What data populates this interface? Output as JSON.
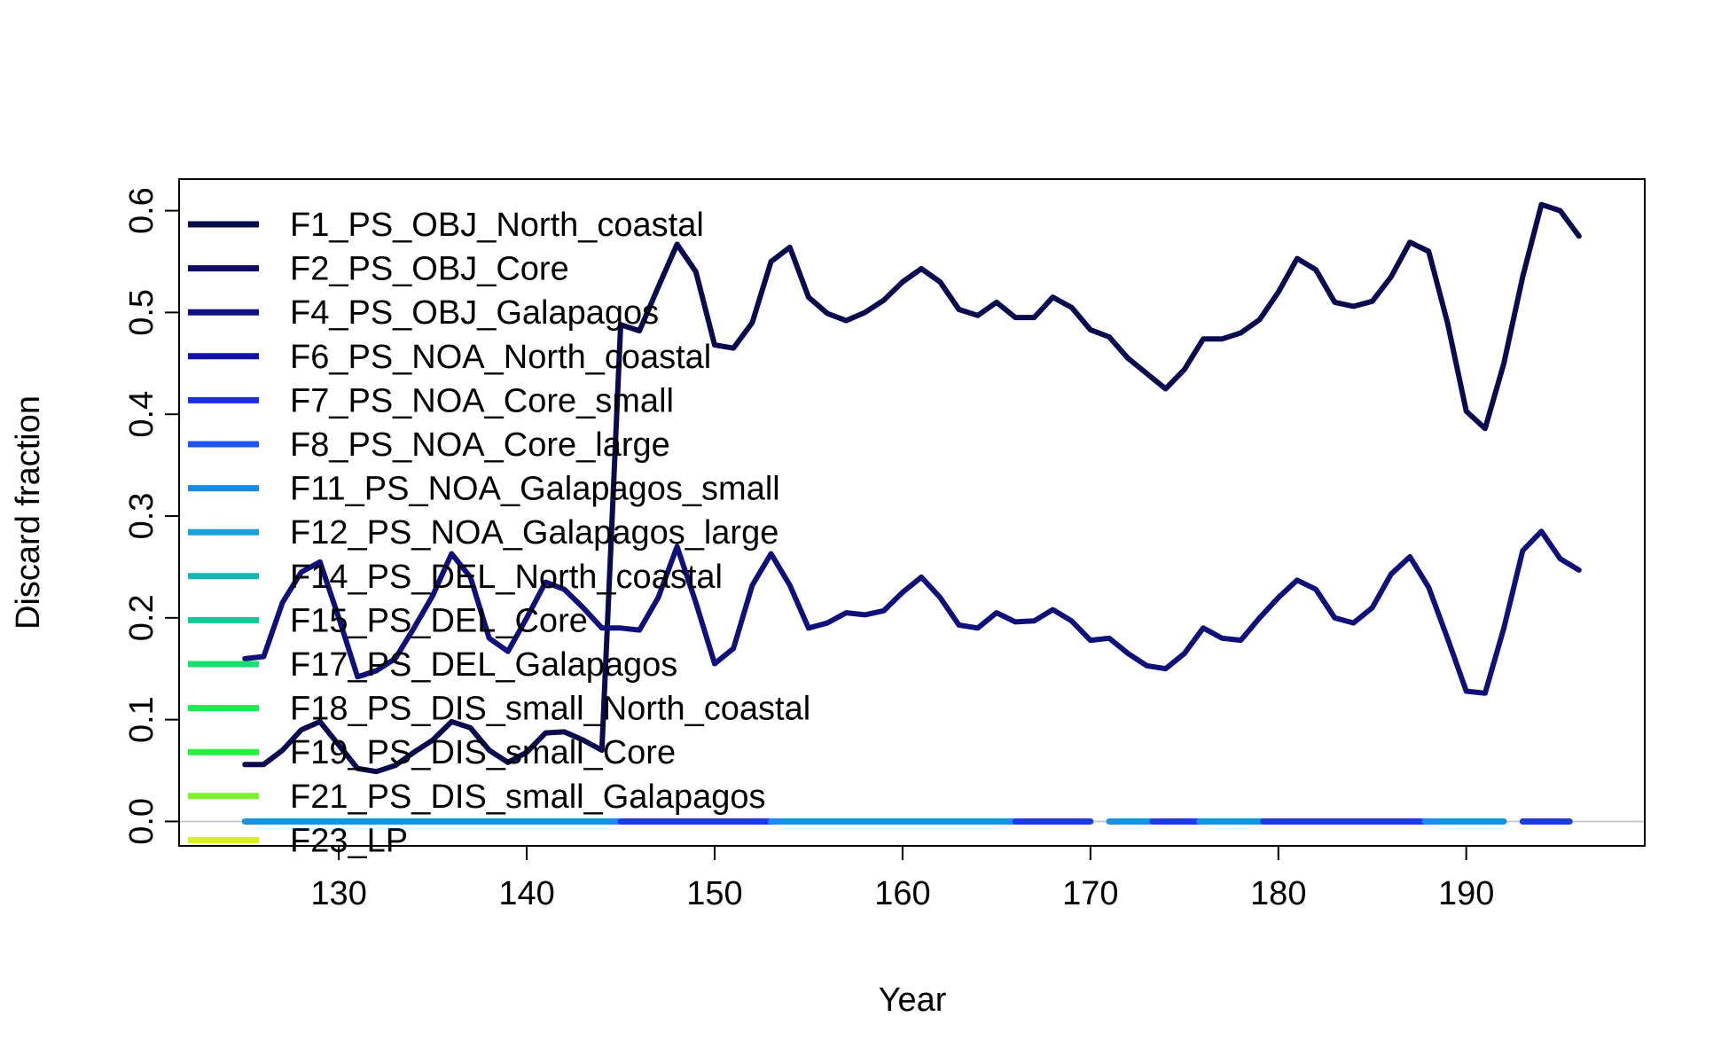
{
  "chart_data": {
    "type": "line",
    "title": "",
    "xlabel": "Year",
    "ylabel": "Discard fraction",
    "xlim": [
      121.5,
      199.5
    ],
    "ylim": [
      -0.024,
      0.631
    ],
    "xticks": [
      130,
      140,
      150,
      160,
      170,
      180,
      190
    ],
    "yticks": [
      0.0,
      0.1,
      0.2,
      0.3,
      0.4,
      0.5,
      0.6
    ],
    "grid": false,
    "legend_position": "top-left",
    "zero_line": {
      "y": 0,
      "color": "#c8c8c8"
    },
    "legend": [
      {
        "label": "F1_PS_OBJ_North_coastal",
        "color": "#0a0a4e"
      },
      {
        "label": "F2_PS_OBJ_Core",
        "color": "#0d0d66"
      },
      {
        "label": "F4_PS_OBJ_Galapagos",
        "color": "#101080"
      },
      {
        "label": "F6_PS_NOA_North_coastal",
        "color": "#1212a8"
      },
      {
        "label": "F7_PS_NOA_Core_small",
        "color": "#1a2ee0"
      },
      {
        "label": "F8_PS_NOA_Core_large",
        "color": "#1d55f0"
      },
      {
        "label": "F11_PS_NOA_Galapagos_small",
        "color": "#1a8ae8"
      },
      {
        "label": "F12_PS_NOA_Galapagos_large",
        "color": "#1aa0dc"
      },
      {
        "label": "F14_PS_DEL_North_coastal",
        "color": "#12b8b0"
      },
      {
        "label": "F15_PS_DEL_Core",
        "color": "#10c898"
      },
      {
        "label": "F17_PS_DEL_Galapagos",
        "color": "#16e070"
      },
      {
        "label": "F18_PS_DIS_small_North_coastal",
        "color": "#18ec50"
      },
      {
        "label": "F19_PS_DIS_small_Core",
        "color": "#28f040"
      },
      {
        "label": "F21_PS_DIS_small_Galapagos",
        "color": "#7cf02c"
      },
      {
        "label": "F23_LP",
        "color": "#d8f020"
      }
    ],
    "series": [
      {
        "color": "#0a0a4e",
        "x": [
          125,
          126,
          127,
          128,
          129,
          130,
          131,
          132,
          133,
          134,
          135,
          136,
          137,
          138,
          139,
          140,
          141,
          142,
          143,
          144,
          145,
          146,
          147,
          148,
          149,
          150,
          151,
          152,
          153,
          154,
          155,
          156,
          157,
          158,
          159,
          160,
          161,
          162,
          163,
          164,
          165,
          166,
          167,
          168,
          169,
          170,
          171,
          172,
          173,
          174,
          175,
          176,
          177,
          178,
          179,
          180,
          181,
          182,
          183,
          184,
          185,
          186,
          187,
          188,
          189,
          190,
          191,
          192,
          193,
          194,
          195,
          196
        ],
        "y": [
          0.056,
          0.056,
          0.07,
          0.09,
          0.098,
          0.075,
          0.052,
          0.049,
          0.055,
          0.068,
          0.08,
          0.098,
          0.092,
          0.07,
          0.058,
          0.068,
          0.087,
          0.088,
          0.08,
          0.07,
          0.488,
          0.482,
          0.525,
          0.567,
          0.54,
          0.468,
          0.465,
          0.49,
          0.55,
          0.564,
          0.515,
          0.499,
          0.492,
          0.5,
          0.512,
          0.53,
          0.543,
          0.53,
          0.503,
          0.497,
          0.51,
          0.495,
          0.495,
          0.515,
          0.505,
          0.483,
          0.476,
          0.455,
          0.44,
          0.425,
          0.444,
          0.474,
          0.474,
          0.48,
          0.493,
          0.52,
          0.553,
          0.542,
          0.51,
          0.506,
          0.511,
          0.535,
          0.569,
          0.56,
          0.49,
          0.403,
          0.386,
          0.45,
          0.535,
          0.606,
          0.6,
          0.575
        ]
      },
      {
        "color": "#10107a",
        "x": [
          125,
          126,
          127,
          128,
          129,
          130,
          131,
          132,
          133,
          134,
          135,
          136,
          137,
          138,
          139,
          140,
          141,
          142,
          143,
          144,
          145,
          146,
          147,
          148,
          149,
          150,
          151,
          152,
          153,
          154,
          155,
          156,
          157,
          158,
          159,
          160,
          161,
          162,
          163,
          164,
          165,
          166,
          167,
          168,
          169,
          170,
          171,
          172,
          173,
          174,
          175,
          176,
          177,
          178,
          179,
          180,
          181,
          182,
          183,
          184,
          185,
          186,
          187,
          188,
          189,
          190,
          191,
          192,
          193,
          194,
          195,
          196
        ],
        "y": [
          0.16,
          0.162,
          0.215,
          0.245,
          0.255,
          0.2,
          0.142,
          0.148,
          0.16,
          0.19,
          0.222,
          0.263,
          0.24,
          0.18,
          0.167,
          0.2,
          0.235,
          0.228,
          0.21,
          0.19,
          0.19,
          0.188,
          0.22,
          0.27,
          0.215,
          0.155,
          0.17,
          0.232,
          0.263,
          0.232,
          0.19,
          0.195,
          0.205,
          0.203,
          0.207,
          0.225,
          0.24,
          0.22,
          0.193,
          0.19,
          0.205,
          0.196,
          0.197,
          0.208,
          0.197,
          0.178,
          0.18,
          0.165,
          0.153,
          0.15,
          0.165,
          0.19,
          0.18,
          0.178,
          0.2,
          0.22,
          0.237,
          0.228,
          0.2,
          0.195,
          0.21,
          0.243,
          0.26,
          0.23,
          0.18,
          0.128,
          0.126,
          0.19,
          0.266,
          0.285,
          0.258,
          0.247
        ]
      }
    ],
    "zero_segments": [
      {
        "color": "#1a90e0",
        "x": [
          125,
          145
        ]
      },
      {
        "color": "#1a3ce0",
        "x": [
          145,
          153
        ]
      },
      {
        "color": "#1a90e0",
        "x": [
          153,
          166
        ]
      },
      {
        "color": "#1a3ce0",
        "x": [
          166,
          170
        ]
      },
      {
        "color": "#1a90e0",
        "x": [
          171,
          173.3
        ]
      },
      {
        "color": "#1a3ce0",
        "x": [
          173.3,
          175.8
        ]
      },
      {
        "color": "#1a90e0",
        "x": [
          175.8,
          179.2
        ]
      },
      {
        "color": "#1a3ce0",
        "x": [
          179.2,
          187.8
        ]
      },
      {
        "color": "#1a90e0",
        "x": [
          187.8,
          192
        ]
      },
      {
        "color": "#1a3ce0",
        "x": [
          193,
          195.5
        ]
      }
    ]
  }
}
